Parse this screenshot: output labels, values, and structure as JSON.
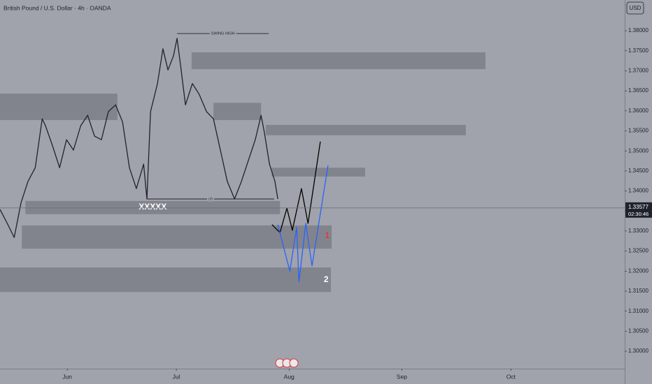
{
  "chart_data": {
    "type": "line",
    "title": "British Pound / U.S. Dollar · 4h · OANDA",
    "currency": "USD",
    "xlim": [
      -18.5,
      153.3
    ],
    "xticks": [
      {
        "value": 0,
        "label": "Jun"
      },
      {
        "value": 30,
        "label": "Jul"
      },
      {
        "value": 61,
        "label": "Aug"
      },
      {
        "value": 92,
        "label": "Sep"
      },
      {
        "value": 122,
        "label": "Oct"
      }
    ],
    "ylim": [
      1.29565,
      1.38767
    ],
    "yticks": [
      {
        "value": 1.3,
        "label": "1.30000"
      },
      {
        "value": 1.305,
        "label": "1.30500"
      },
      {
        "value": 1.31,
        "label": "1.31000"
      },
      {
        "value": 1.315,
        "label": "1.31500"
      },
      {
        "value": 1.32,
        "label": "1.32000"
      },
      {
        "value": 1.325,
        "label": "1.32500"
      },
      {
        "value": 1.33,
        "label": "1.33000"
      },
      {
        "value": 1.335,
        "label": "1.33500"
      },
      {
        "value": 1.34,
        "label": "1.34000"
      },
      {
        "value": 1.345,
        "label": "1.34500"
      },
      {
        "value": 1.35,
        "label": "1.35000"
      },
      {
        "value": 1.355,
        "label": "1.35500"
      },
      {
        "value": 1.36,
        "label": "1.36000"
      },
      {
        "value": 1.365,
        "label": "1.36500"
      },
      {
        "value": 1.37,
        "label": "1.37000"
      },
      {
        "value": 1.375,
        "label": "1.37500"
      },
      {
        "value": 1.38,
        "label": "1.38000"
      }
    ],
    "grid": false,
    "zone_color": "#7c7f87",
    "zones": [
      {
        "x": [
          -18.5,
          13.8
        ],
        "y": [
          1.3577,
          1.3643
        ]
      },
      {
        "x": [
          34.2,
          115.0
        ],
        "y": [
          1.3704,
          1.3746
        ]
      },
      {
        "x": [
          40.2,
          53.3
        ],
        "y": [
          1.3577,
          1.362
        ]
      },
      {
        "x": [
          54.6,
          109.6
        ],
        "y": [
          1.3539,
          1.3565
        ]
      },
      {
        "x": [
          56.2,
          81.9
        ],
        "y": [
          1.3436,
          1.3458
        ]
      },
      {
        "x": [
          -11.5,
          58.5
        ],
        "y": [
          1.3342,
          1.3375
        ]
      },
      {
        "x": [
          -12.5,
          72.7
        ],
        "y": [
          1.3256,
          1.3314
        ]
      },
      {
        "x": [
          -18.5,
          72.5
        ],
        "y": [
          1.3148,
          1.3209
        ]
      }
    ],
    "series": [
      {
        "color": "#1e222d",
        "x": [
          -18.5,
          -16.5,
          -14.6,
          -12.7,
          -10.8,
          -8.8,
          -6.9,
          -6.0,
          -4.0,
          -2.1,
          -0.2,
          1.7,
          3.7,
          5.6,
          7.5,
          9.4,
          11.3,
          13.3,
          15.2,
          17.1,
          19.0,
          21.0,
          21.9,
          22.9,
          24.8,
          26.3,
          27.7,
          29.2,
          30.2,
          31.2,
          32.5,
          34.4,
          36.3,
          38.3,
          40.2,
          42.1,
          44.0,
          46.0,
          47.9,
          49.8,
          51.7,
          53.3,
          54.2,
          55.6,
          57.1,
          57.9
        ],
        "values": [
          1.3354,
          1.3319,
          1.3284,
          1.3371,
          1.3424,
          1.3458,
          1.358,
          1.3563,
          1.3511,
          1.3458,
          1.3528,
          1.3502,
          1.3563,
          1.3589,
          1.3537,
          1.3528,
          1.3598,
          1.3615,
          1.3572,
          1.3458,
          1.3406,
          1.3467,
          1.338,
          1.3598,
          1.3668,
          1.3755,
          1.3702,
          1.3737,
          1.3781,
          1.3711,
          1.3615,
          1.3668,
          1.3641,
          1.3598,
          1.358,
          1.3502,
          1.3424,
          1.338,
          1.3424,
          1.3476,
          1.3528,
          1.3589,
          1.3546,
          1.3467,
          1.3424,
          1.338
        ]
      },
      {
        "color": "#000000",
        "x": [
          56.3,
          58.5,
          60.4,
          61.9,
          64.4,
          66.2,
          69.6
        ],
        "values": [
          1.3316,
          1.3296,
          1.3357,
          1.3302,
          1.3406,
          1.3319,
          1.3523
        ]
      },
      {
        "color": "#2962ff",
        "x": [
          57.9,
          61.2,
          63.1,
          63.7,
          65.6,
          67.3,
          71.7
        ],
        "values": [
          1.3316,
          1.32,
          1.3309,
          1.3173,
          1.3319,
          1.3213,
          1.3464
        ]
      }
    ],
    "annotations": [
      {
        "text": "SWING HIGH",
        "x": [
          30.2,
          55.4
        ],
        "y": 1.3793
      },
      {
        "text": "ch",
        "x": [
          21.9,
          56.9
        ],
        "y": 1.338
      }
    ],
    "labels": [
      {
        "text": "XXXXX",
        "x": 23.5,
        "y": 1.3359,
        "color": "#ffffff"
      },
      {
        "text": "1",
        "x": 71.5,
        "y": 1.3288,
        "color": "#e53935"
      },
      {
        "text": "2",
        "x": 71.2,
        "y": 1.3178,
        "color": "#ffffff"
      }
    ],
    "last_price": {
      "value": 1.33577,
      "label": "1.33577",
      "countdown": "02:30:46"
    }
  }
}
